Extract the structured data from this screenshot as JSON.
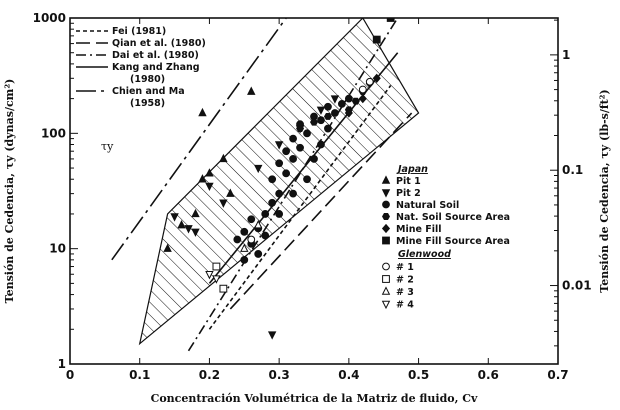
{
  "chart_data": {
    "type": "scatter",
    "xlabel": "Concentración Volumétrica de la Matriz de fluido, Cv",
    "ylabel_left": "Tensión de Cedencia, τy (dynas/cm²)",
    "ylabel_right": "Tensión de Cedencia, τy (lb-s/ft²)",
    "tau_label": "τy",
    "x_ticks": [
      "0",
      "0.1",
      "0.2",
      "0.3",
      "0.4",
      "0.5",
      "0.6",
      "0.7"
    ],
    "y_ticks": [
      "1",
      "10",
      "100",
      "1000"
    ],
    "y2_ticks": [
      "0.01",
      "0.1",
      "1"
    ],
    "xlim": [
      0,
      0.7
    ],
    "ylim": [
      1,
      1000
    ],
    "y_scale": "log",
    "y2_lim": [
      0.002088,
      2.088
    ],
    "line_legend": [
      {
        "label": "Fei (1981)",
        "style": "short-dash"
      },
      {
        "label": "Qian et al. (1980)",
        "style": "long-dash"
      },
      {
        "label": "Dai et al. (1980)",
        "style": "dash-dot"
      },
      {
        "label": "Kang and Zhang (1980)",
        "style": "solid"
      },
      {
        "label": "Chien and Ma (1958)",
        "style": "long-dash-dot"
      }
    ],
    "marker_legend": {
      "japan_header": "Japan",
      "japan": [
        {
          "label": "Pit 1",
          "marker": "triangle-up"
        },
        {
          "label": "Pit 2",
          "marker": "triangle-down"
        },
        {
          "label": "Natural Soil",
          "marker": "circle"
        },
        {
          "label": "Nat. Soil Source Area",
          "marker": "hexagon"
        },
        {
          "label": "Mine Fill",
          "marker": "diamond"
        },
        {
          "label": "Mine Fill Source Area",
          "marker": "square"
        }
      ],
      "glenwood_header": "Glenwood",
      "glenwood": [
        {
          "label": "# 1",
          "marker": "open-circle"
        },
        {
          "label": "# 2",
          "marker": "open-square"
        },
        {
          "label": "# 3",
          "marker": "open-triangle-up"
        },
        {
          "label": "# 4",
          "marker": "open-triangle-down"
        }
      ]
    },
    "lines": [
      {
        "name": "Chien and Ma (1958)",
        "style": "long-dash-dot",
        "x": [
          0.06,
          0.31
        ],
        "y": [
          8,
          1000
        ]
      },
      {
        "name": "Dai et al. (1980)",
        "style": "dash-dot",
        "x": [
          0.17,
          0.47
        ],
        "y": [
          1.3,
          1000
        ]
      },
      {
        "name": "Kang and Zhang (1980)",
        "style": "solid",
        "x": [
          0.2,
          0.47
        ],
        "y": [
          5,
          500
        ]
      },
      {
        "name": "Qian et al. (1980)",
        "style": "long-dash",
        "x": [
          0.23,
          0.49
        ],
        "y": [
          3,
          150
        ]
      },
      {
        "name": "Fei (1981)",
        "style": "short-dash",
        "x": [
          0.2,
          0.46
        ],
        "y": [
          2,
          260
        ]
      }
    ],
    "band": {
      "lower": {
        "x": [
          0.1,
          0.5
        ],
        "y": [
          1.5,
          150
        ]
      },
      "upper": {
        "x": [
          0.14,
          0.42
        ],
        "y": [
          20,
          1000
        ]
      }
    },
    "points": [
      {
        "marker": "triangle-up",
        "x": 0.14,
        "y": 10
      },
      {
        "marker": "triangle-up",
        "x": 0.16,
        "y": 16
      },
      {
        "marker": "triangle-up",
        "x": 0.18,
        "y": 20
      },
      {
        "marker": "triangle-up",
        "x": 0.19,
        "y": 40
      },
      {
        "marker": "triangle-up",
        "x": 0.2,
        "y": 45
      },
      {
        "marker": "triangle-up",
        "x": 0.22,
        "y": 60
      },
      {
        "marker": "triangle-up",
        "x": 0.19,
        "y": 150
      },
      {
        "marker": "triangle-up",
        "x": 0.26,
        "y": 230
      },
      {
        "marker": "triangle-up",
        "x": 0.23,
        "y": 30
      },
      {
        "marker": "triangle-down",
        "x": 0.15,
        "y": 19
      },
      {
        "marker": "triangle-down",
        "x": 0.17,
        "y": 15
      },
      {
        "marker": "triangle-down",
        "x": 0.18,
        "y": 14
      },
      {
        "marker": "triangle-down",
        "x": 0.2,
        "y": 35
      },
      {
        "marker": "triangle-down",
        "x": 0.22,
        "y": 25
      },
      {
        "marker": "triangle-down",
        "x": 0.27,
        "y": 50
      },
      {
        "marker": "triangle-down",
        "x": 0.3,
        "y": 80
      },
      {
        "marker": "triangle-down",
        "x": 0.33,
        "y": 110
      },
      {
        "marker": "triangle-down",
        "x": 0.36,
        "y": 160
      },
      {
        "marker": "triangle-down",
        "x": 0.38,
        "y": 200
      },
      {
        "marker": "triangle-down",
        "x": 0.29,
        "y": 1.8
      },
      {
        "marker": "circle",
        "x": 0.24,
        "y": 12
      },
      {
        "marker": "circle",
        "x": 0.25,
        "y": 14
      },
      {
        "marker": "circle",
        "x": 0.26,
        "y": 11
      },
      {
        "marker": "circle",
        "x": 0.26,
        "y": 18
      },
      {
        "marker": "circle",
        "x": 0.27,
        "y": 9
      },
      {
        "marker": "circle",
        "x": 0.27,
        "y": 15
      },
      {
        "marker": "circle",
        "x": 0.28,
        "y": 20
      },
      {
        "marker": "circle",
        "x": 0.28,
        "y": 13
      },
      {
        "marker": "circle",
        "x": 0.29,
        "y": 25
      },
      {
        "marker": "circle",
        "x": 0.29,
        "y": 40
      },
      {
        "marker": "circle",
        "x": 0.3,
        "y": 30
      },
      {
        "marker": "circle",
        "x": 0.3,
        "y": 55
      },
      {
        "marker": "circle",
        "x": 0.31,
        "y": 45
      },
      {
        "marker": "circle",
        "x": 0.31,
        "y": 70
      },
      {
        "marker": "circle",
        "x": 0.32,
        "y": 60
      },
      {
        "marker": "circle",
        "x": 0.32,
        "y": 90
      },
      {
        "marker": "circle",
        "x": 0.33,
        "y": 75
      },
      {
        "marker": "circle",
        "x": 0.33,
        "y": 120
      },
      {
        "marker": "circle",
        "x": 0.34,
        "y": 100
      },
      {
        "marker": "circle",
        "x": 0.35,
        "y": 140
      },
      {
        "marker": "circle",
        "x": 0.36,
        "y": 130
      },
      {
        "marker": "circle",
        "x": 0.37,
        "y": 170
      },
      {
        "marker": "circle",
        "x": 0.38,
        "y": 150
      },
      {
        "marker": "circle",
        "x": 0.39,
        "y": 180
      },
      {
        "marker": "circle",
        "x": 0.4,
        "y": 200
      },
      {
        "marker": "circle",
        "x": 0.34,
        "y": 40
      },
      {
        "marker": "circle",
        "x": 0.35,
        "y": 60
      },
      {
        "marker": "circle",
        "x": 0.36,
        "y": 80
      },
      {
        "marker": "circle",
        "x": 0.37,
        "y": 110
      },
      {
        "marker": "circle",
        "x": 0.3,
        "y": 20
      },
      {
        "marker": "circle",
        "x": 0.32,
        "y": 30
      },
      {
        "marker": "circle",
        "x": 0.25,
        "y": 8
      },
      {
        "marker": "hexagon",
        "x": 0.33,
        "y": 110
      },
      {
        "marker": "hexagon",
        "x": 0.35,
        "y": 125
      },
      {
        "marker": "hexagon",
        "x": 0.37,
        "y": 140
      },
      {
        "marker": "hexagon",
        "x": 0.4,
        "y": 160
      },
      {
        "marker": "hexagon",
        "x": 0.41,
        "y": 190
      },
      {
        "marker": "hexagon",
        "x": 0.42,
        "y": 230
      },
      {
        "marker": "diamond",
        "x": 0.4,
        "y": 150
      },
      {
        "marker": "diamond",
        "x": 0.42,
        "y": 200
      },
      {
        "marker": "diamond",
        "x": 0.43,
        "y": 270
      },
      {
        "marker": "diamond",
        "x": 0.44,
        "y": 300
      },
      {
        "marker": "square",
        "x": 0.44,
        "y": 650
      },
      {
        "marker": "square",
        "x": 0.46,
        "y": 1000
      },
      {
        "marker": "open-circle",
        "x": 0.42,
        "y": 240
      },
      {
        "marker": "open-circle",
        "x": 0.43,
        "y": 280
      },
      {
        "marker": "open-circle",
        "x": 0.26,
        "y": 12
      },
      {
        "marker": "open-square",
        "x": 0.22,
        "y": 4.5
      },
      {
        "marker": "open-square",
        "x": 0.21,
        "y": 7
      },
      {
        "marker": "open-triangle-up",
        "x": 0.25,
        "y": 10
      },
      {
        "marker": "open-triangle-up",
        "x": 0.27,
        "y": 16
      },
      {
        "marker": "open-triangle-down",
        "x": 0.2,
        "y": 6
      },
      {
        "marker": "open-triangle-down",
        "x": 0.21,
        "y": 5.5
      }
    ]
  }
}
